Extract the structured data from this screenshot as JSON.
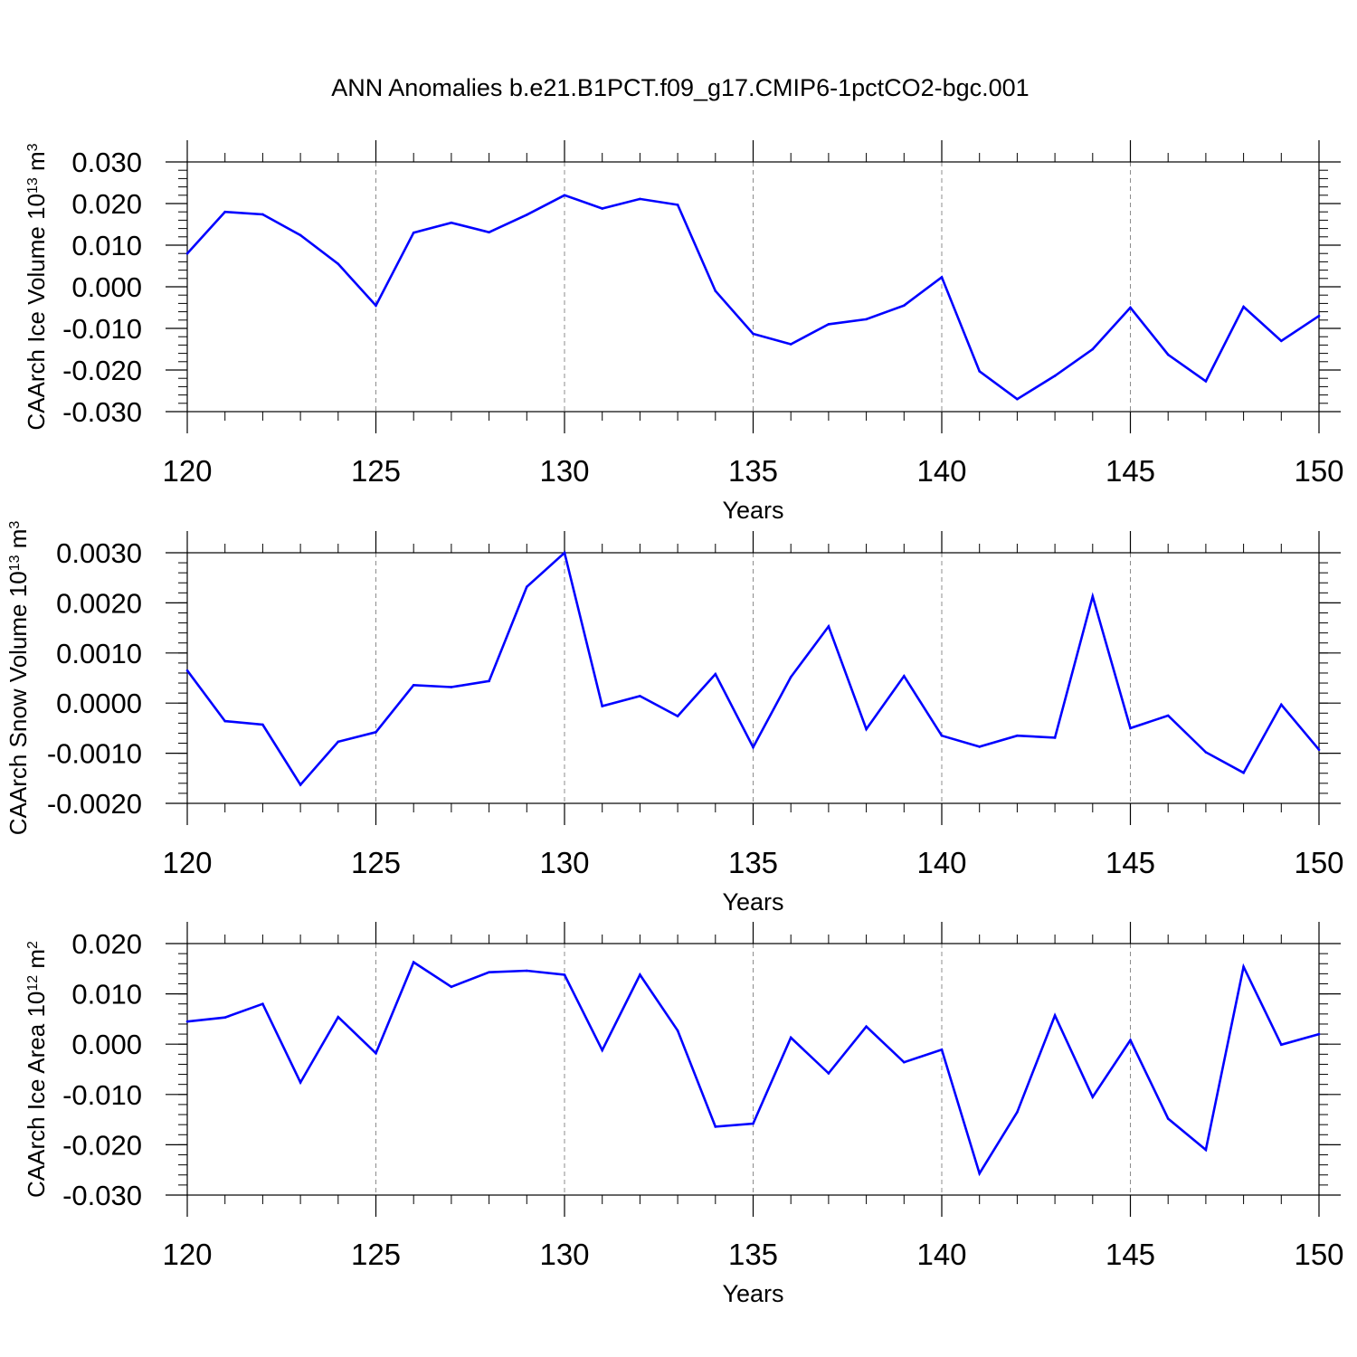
{
  "title": "ANN Anomalies b.e21.B1PCT.f09_g17.CMIP6-1pctCO2-bgc.001",
  "colors": {
    "line": "#0000ff",
    "axis": "#000000",
    "grid": "#8c8c8c"
  },
  "chart_data": [
    {
      "type": "line",
      "ylabel": {
        "main": "CAArch Ice Volume 10",
        "exp": "13",
        "unit": " m",
        "unit_exp": "3"
      },
      "xlabel": "Years",
      "xlim": [
        120,
        150
      ],
      "ylim": [
        -0.03,
        0.03
      ],
      "xticks": [
        "120",
        "125",
        "130",
        "135",
        "140",
        "145",
        "150"
      ],
      "yticks": [
        "0.030",
        "0.020",
        "0.010",
        "0.000",
        "-0.010",
        "-0.020",
        "-0.030"
      ],
      "grid": "vertical dashed at major x ticks",
      "x": [
        120,
        121,
        122,
        123,
        124,
        125,
        126,
        127,
        128,
        129,
        130,
        131,
        132,
        133,
        134,
        135,
        136,
        137,
        138,
        139,
        140,
        141,
        142,
        143,
        144,
        145,
        146,
        147,
        148,
        149,
        150
      ],
      "series": [
        {
          "values": [
            0.008,
            0.018,
            0.0174,
            0.0124,
            0.0055,
            -0.0045,
            0.013,
            0.0154,
            0.0131,
            0.0173,
            0.022,
            0.0188,
            0.0211,
            0.0197,
            -0.001,
            -0.0113,
            -0.0138,
            -0.009,
            -0.0078,
            -0.0045,
            0.0023,
            -0.0203,
            -0.027,
            -0.0214,
            -0.015,
            -0.005,
            -0.0163,
            -0.0227,
            -0.0048,
            -0.013,
            -0.007
          ]
        }
      ]
    },
    {
      "type": "line",
      "ylabel": {
        "main": "CAArch Snow Volume 10",
        "exp": "13",
        "unit": " m",
        "unit_exp": "3"
      },
      "xlabel": "Years",
      "xlim": [
        120,
        150
      ],
      "ylim": [
        -0.002,
        0.003
      ],
      "xticks": [
        "120",
        "125",
        "130",
        "135",
        "140",
        "145",
        "150"
      ],
      "yticks": [
        "0.0030",
        "0.0020",
        "0.0010",
        "0.0000",
        "-0.0010",
        "-0.0020"
      ],
      "grid": "vertical dashed at major x ticks",
      "x": [
        120,
        121,
        122,
        123,
        124,
        125,
        126,
        127,
        128,
        129,
        130,
        131,
        132,
        133,
        134,
        135,
        136,
        137,
        138,
        139,
        140,
        141,
        142,
        143,
        144,
        145,
        146,
        147,
        148,
        149,
        150
      ],
      "series": [
        {
          "values": [
            0.00065,
            -0.00036,
            -0.00043,
            -0.00163,
            -0.00077,
            -0.00058,
            0.00036,
            0.00032,
            0.00044,
            0.00232,
            0.003,
            -6e-05,
            0.00014,
            -0.00026,
            0.00058,
            -0.00088,
            0.00052,
            0.00153,
            -0.00052,
            0.00054,
            -0.00065,
            -0.00087,
            -0.00065,
            -0.00069,
            0.00213,
            -0.0005,
            -0.00025,
            -0.00098,
            -0.00139,
            -3e-05,
            -0.00093
          ]
        }
      ]
    },
    {
      "type": "line",
      "ylabel": {
        "main": "CAArch Ice Area 10",
        "exp": "12",
        "unit": " m",
        "unit_exp": "2"
      },
      "xlabel": "Years",
      "xlim": [
        120,
        150
      ],
      "ylim": [
        -0.03,
        0.02
      ],
      "xticks": [
        "120",
        "125",
        "130",
        "135",
        "140",
        "145",
        "150"
      ],
      "yticks": [
        "0.020",
        "0.010",
        "0.000",
        "-0.010",
        "-0.020",
        "-0.030"
      ],
      "grid": "vertical dashed at major x ticks",
      "x": [
        120,
        121,
        122,
        123,
        124,
        125,
        126,
        127,
        128,
        129,
        130,
        131,
        132,
        133,
        134,
        135,
        136,
        137,
        138,
        139,
        140,
        141,
        142,
        143,
        144,
        145,
        146,
        147,
        148,
        149,
        150
      ],
      "series": [
        {
          "values": [
            0.0045,
            0.0053,
            0.008,
            -0.0076,
            0.0054,
            -0.0018,
            0.0163,
            0.0114,
            0.0143,
            0.0146,
            0.0138,
            -0.0012,
            0.0138,
            0.0027,
            -0.0164,
            -0.0158,
            0.0013,
            -0.0058,
            0.0035,
            -0.0036,
            -0.0011,
            -0.0257,
            -0.0135,
            0.0057,
            -0.0105,
            0.0008,
            -0.0148,
            -0.021,
            0.0154,
            -0.0001,
            0.002
          ]
        }
      ]
    }
  ]
}
